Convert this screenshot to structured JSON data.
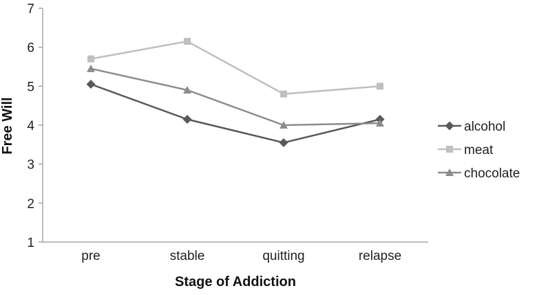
{
  "chart_data": {
    "type": "line",
    "title": "",
    "xlabel": "Stage of Addiction",
    "ylabel": "Free Will",
    "categories": [
      "pre",
      "stable",
      "quitting",
      "relapse"
    ],
    "series": [
      {
        "name": "alcohol",
        "marker": "diamond",
        "color": "#595959",
        "values": [
          5.05,
          4.15,
          3.55,
          4.15
        ]
      },
      {
        "name": "meat",
        "marker": "square",
        "color": "#bfbfbf",
        "values": [
          5.7,
          6.15,
          4.8,
          5.0
        ]
      },
      {
        "name": "chocolate",
        "marker": "triangle",
        "color": "#8c8c8c",
        "values": [
          5.45,
          4.9,
          4.0,
          4.05
        ]
      }
    ],
    "ylim": [
      1,
      7
    ],
    "yticks": [
      1,
      2,
      3,
      4,
      5,
      6,
      7
    ],
    "grid": false,
    "legend_position": "right",
    "axis_color": "#a6a6a6"
  }
}
